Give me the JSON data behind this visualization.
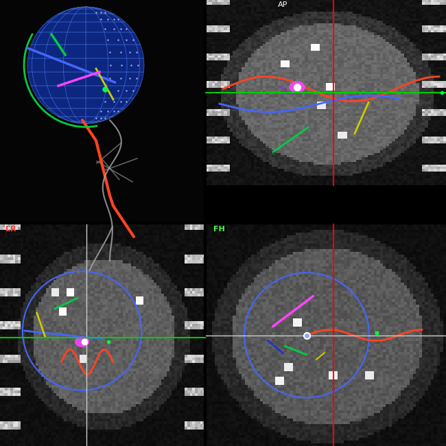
{
  "background_color": "#000000",
  "panel_bg": "#1a1a1a",
  "crosshair_color_red": "#ff0000",
  "crosshair_color_green": "#00cc00",
  "crosshair_color_white": "#cccccc",
  "vessel_colors": {
    "blue": "#4466ff",
    "red": "#ff4422",
    "green": "#00cc44",
    "yellow": "#cccc00",
    "magenta": "#ff44ff",
    "dark_blue": "#2233cc",
    "purple": "#8822cc"
  },
  "sphere_color": "#1133aa",
  "sphere_grid_color": "#5588ff",
  "labels": {
    "ap": {
      "text": "AP",
      "color": "#ffffff",
      "fontsize": 8
    },
    "lr": {
      "text": "LR",
      "color": "#ff4444",
      "fontsize": 8
    },
    "fh": {
      "text": "FH",
      "color": "#44ff44",
      "fontsize": 8
    }
  }
}
